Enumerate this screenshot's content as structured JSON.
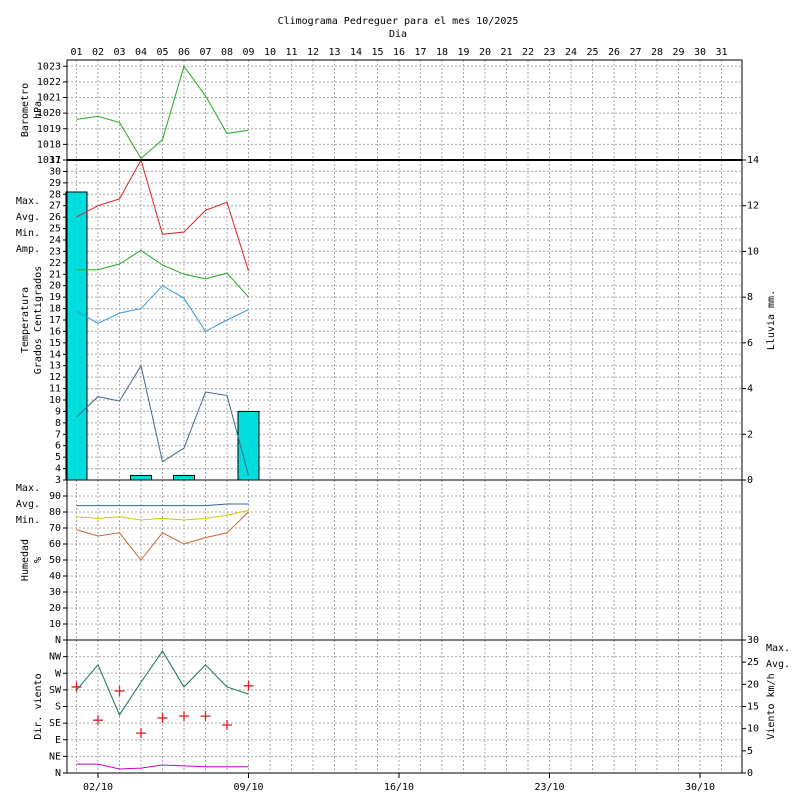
{
  "header": {
    "title": "Climograma Pedreguer para el mes 10/2025",
    "subtitle": "Dia"
  },
  "chart_data": [
    {
      "type": "line",
      "categories": [
        "01",
        "02",
        "03",
        "04",
        "05",
        "06",
        "07",
        "08",
        "09",
        "10",
        "11",
        "12",
        "13",
        "14",
        "15",
        "16",
        "17",
        "18",
        "19",
        "20",
        "21",
        "22",
        "23",
        "24",
        "25",
        "26",
        "27",
        "28",
        "29",
        "30",
        "31"
      ],
      "ylabel": [
        "Barometro",
        "hPa"
      ],
      "ylabel_color": "#22aa22",
      "ylim": [
        1017,
        1023.4
      ],
      "yticks": [
        1017,
        1018,
        1019,
        1020,
        1021,
        1022,
        1023
      ],
      "grid": true,
      "series": [
        {
          "type": "line",
          "color": "#22aa22",
          "values": [
            1019.6,
            1019.8,
            1019.4,
            1017.1,
            1018.3,
            1023.0,
            1021.1,
            1018.7,
            1018.9,
            null,
            null,
            null,
            null,
            null,
            null,
            null,
            null,
            null,
            null,
            null,
            null,
            null,
            null,
            null,
            null,
            null,
            null,
            null,
            null,
            null,
            null
          ]
        }
      ]
    },
    {
      "type": "combo",
      "ylabel": [
        "Temperatura",
        "Grados Centigrados"
      ],
      "ylabel_color": "#cc0000",
      "y2label": [
        "Lluvia mm."
      ],
      "y2label_color": "#00cccc",
      "ylim": [
        3,
        31
      ],
      "yticks": [
        3,
        4,
        5,
        6,
        7,
        8,
        9,
        10,
        11,
        12,
        13,
        14,
        15,
        16,
        17,
        18,
        19,
        20,
        21,
        22,
        23,
        24,
        25,
        26,
        27,
        28,
        29,
        30,
        31
      ],
      "y2lim": [
        0,
        14
      ],
      "y2ticks": [
        0,
        2,
        4,
        6,
        8,
        10,
        12,
        14
      ],
      "grid": true,
      "legend": "left",
      "series": [
        {
          "type": "bar",
          "axis": "y2",
          "color": "#00dddd",
          "values": [
            12.6,
            0,
            0,
            0.2,
            0,
            0.2,
            0,
            0,
            3.0,
            null,
            null,
            null,
            null,
            null,
            null,
            null,
            null,
            null,
            null,
            null,
            null,
            null,
            null,
            null,
            null,
            null,
            null,
            null,
            null,
            null,
            null
          ]
        },
        {
          "type": "line",
          "name": "Max.",
          "color": "#dd2222",
          "values": [
            26.0,
            27.0,
            27.6,
            31.0,
            24.5,
            24.7,
            26.6,
            27.3,
            21.3,
            null,
            null,
            null,
            null,
            null,
            null,
            null,
            null,
            null,
            null,
            null,
            null,
            null,
            null,
            null,
            null,
            null,
            null,
            null,
            null,
            null,
            null
          ]
        },
        {
          "type": "line",
          "name": "Avg.",
          "color": "#22aa22",
          "values": [
            21.4,
            21.4,
            21.9,
            23.1,
            21.8,
            21.0,
            20.6,
            21.1,
            19.0,
            null,
            null,
            null,
            null,
            null,
            null,
            null,
            null,
            null,
            null,
            null,
            null,
            null,
            null,
            null,
            null,
            null,
            null,
            null,
            null,
            null,
            null
          ]
        },
        {
          "type": "line",
          "name": "Min.",
          "color": "#3399dd",
          "values": [
            17.8,
            16.7,
            17.6,
            18.0,
            20.0,
            18.9,
            16.0,
            17.0,
            17.9,
            null,
            null,
            null,
            null,
            null,
            null,
            null,
            null,
            null,
            null,
            null,
            null,
            null,
            null,
            null,
            null,
            null,
            null,
            null,
            null,
            null,
            null
          ]
        },
        {
          "type": "line",
          "name": "Amp.",
          "color": "#446688",
          "values": [
            8.5,
            10.3,
            9.9,
            13.0,
            4.6,
            5.8,
            10.7,
            10.4,
            3.4,
            null,
            null,
            null,
            null,
            null,
            null,
            null,
            null,
            null,
            null,
            null,
            null,
            null,
            null,
            null,
            null,
            null,
            null,
            null,
            null,
            null,
            null
          ]
        }
      ]
    },
    {
      "type": "line",
      "ylabel": [
        "Humedad",
        "%"
      ],
      "ylabel_color": "#cc6633",
      "ylim": [
        0,
        100
      ],
      "yticks": [
        10,
        20,
        30,
        40,
        50,
        60,
        70,
        80,
        90
      ],
      "grid": true,
      "legend": "left",
      "series": [
        {
          "type": "line",
          "name": "Max.",
          "color": "#336699",
          "values": [
            84,
            84,
            84,
            84,
            84,
            84,
            84,
            85,
            85,
            null,
            null,
            null,
            null,
            null,
            null,
            null,
            null,
            null,
            null,
            null,
            null,
            null,
            null,
            null,
            null,
            null,
            null,
            null,
            null,
            null,
            null
          ]
        },
        {
          "type": "line",
          "name": "Avg.",
          "color": "#cccc00",
          "values": [
            77,
            76,
            77,
            75,
            76,
            75,
            76,
            78,
            81,
            null,
            null,
            null,
            null,
            null,
            null,
            null,
            null,
            null,
            null,
            null,
            null,
            null,
            null,
            null,
            null,
            null,
            null,
            null,
            null,
            null,
            null
          ]
        },
        {
          "type": "line",
          "name": "Min.",
          "color": "#cc6633",
          "values": [
            69,
            65,
            67,
            50,
            67,
            60,
            64,
            67,
            80,
            null,
            null,
            null,
            null,
            null,
            null,
            null,
            null,
            null,
            null,
            null,
            null,
            null,
            null,
            null,
            null,
            null,
            null,
            null,
            null,
            null,
            null
          ]
        }
      ]
    },
    {
      "type": "combo",
      "ylabel": [
        "Dir. viento"
      ],
      "ylabel_color": "#cc0000",
      "y2label": [
        "Viento km/h"
      ],
      "y2label_color": "#cc00cc",
      "ylim": [
        0,
        360
      ],
      "yticks": [
        {
          "value": 0,
          "label": "N"
        },
        {
          "value": 45,
          "label": "NE"
        },
        {
          "value": 90,
          "label": "E"
        },
        {
          "value": 135,
          "label": "SE"
        },
        {
          "value": 180,
          "label": "S"
        },
        {
          "value": 225,
          "label": "SW"
        },
        {
          "value": 270,
          "label": "W"
        },
        {
          "value": 315,
          "label": "NW"
        },
        {
          "value": 360,
          "label": "N"
        }
      ],
      "y2lim": [
        0,
        30
      ],
      "y2ticks": [
        0,
        5,
        10,
        15,
        20,
        25,
        30
      ],
      "grid": true,
      "legend": "right",
      "xticks": [
        {
          "value": 2,
          "label": "02/10"
        },
        {
          "value": 9,
          "label": "09/10"
        },
        {
          "value": 16,
          "label": "16/10"
        },
        {
          "value": 23,
          "label": "23/10"
        },
        {
          "value": 30,
          "label": "30/10"
        }
      ],
      "series": [
        {
          "type": "scatter",
          "color": "#dd2222",
          "values": [
            233,
            143,
            222,
            108,
            149,
            154,
            154,
            130,
            236,
            null,
            null,
            null,
            null,
            null,
            null,
            null,
            null,
            null,
            null,
            null,
            null,
            null,
            null,
            null,
            null,
            null,
            null,
            null,
            null,
            null,
            null
          ]
        },
        {
          "type": "line",
          "axis": "y2",
          "name": "Max.",
          "color": "#117755",
          "values": [
            18.7,
            24.4,
            13.1,
            20.5,
            27.5,
            19.4,
            24.4,
            19.4,
            17.8,
            null,
            null,
            null,
            null,
            null,
            null,
            null,
            null,
            null,
            null,
            null,
            null,
            null,
            null,
            null,
            null,
            null,
            null,
            null,
            null,
            null,
            null
          ]
        },
        {
          "type": "line",
          "axis": "y2",
          "name": "Avg.",
          "color": "#cc00cc",
          "values": [
            2.0,
            2.0,
            0.9,
            1.1,
            1.8,
            1.6,
            1.4,
            1.4,
            1.4,
            null,
            null,
            null,
            null,
            null,
            null,
            null,
            null,
            null,
            null,
            null,
            null,
            null,
            null,
            null,
            null,
            null,
            null,
            null,
            null,
            null,
            null
          ]
        }
      ]
    }
  ]
}
